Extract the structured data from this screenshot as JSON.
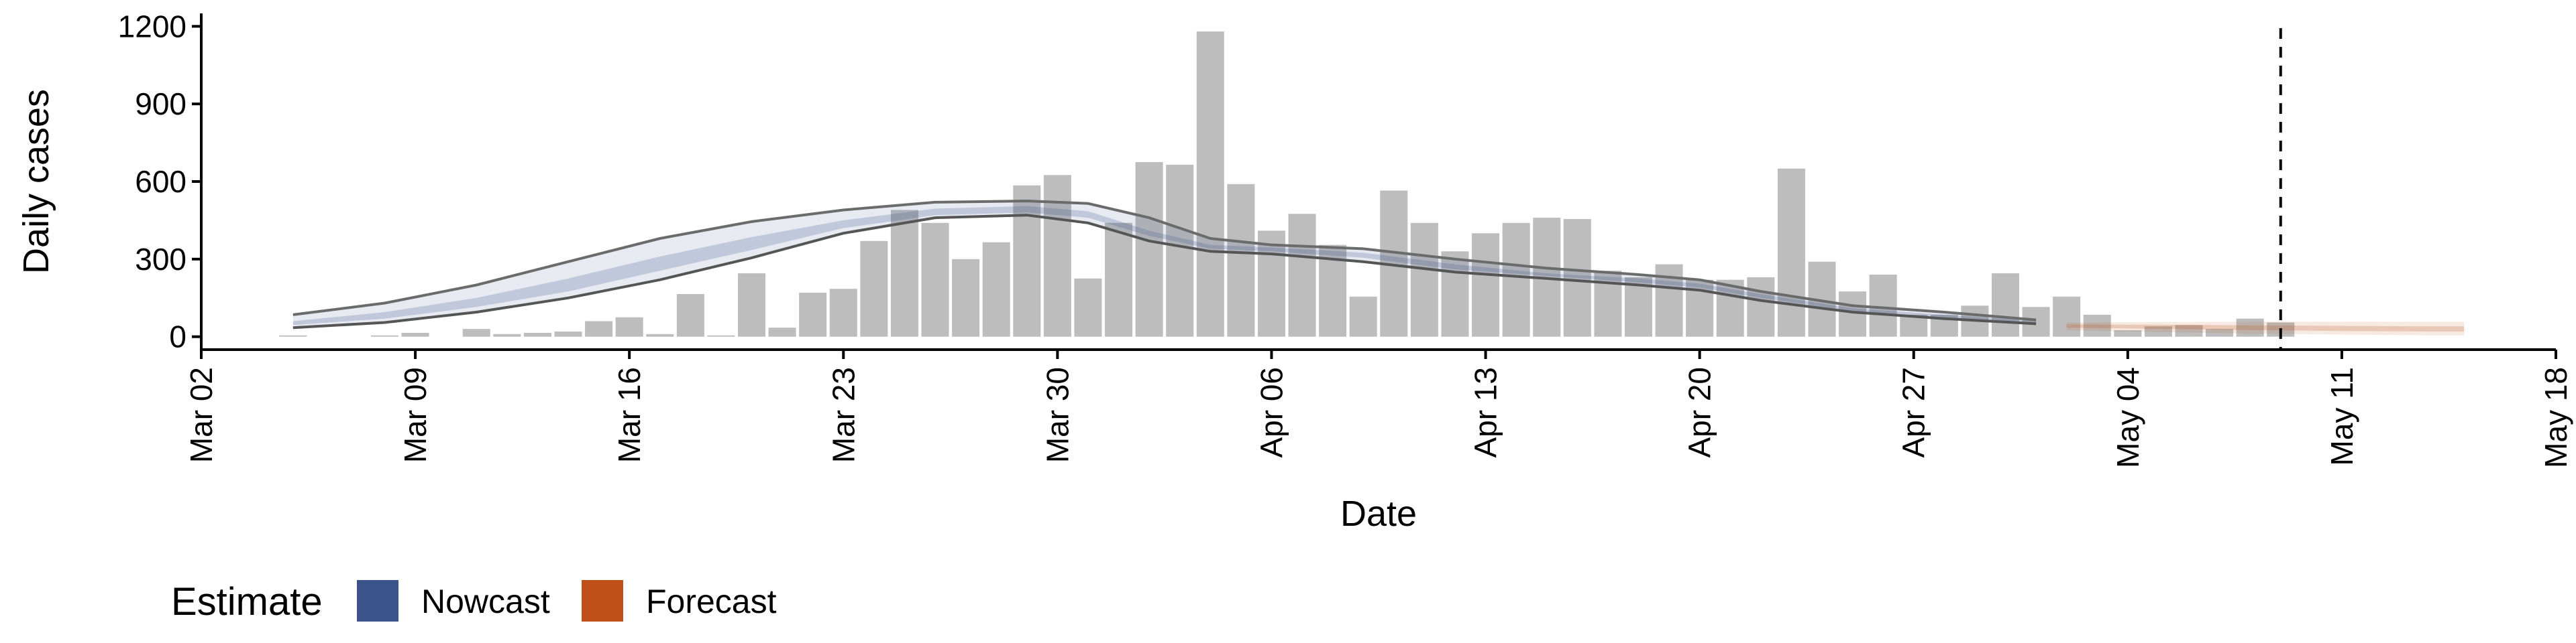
{
  "chart_data": {
    "type": "bar",
    "xlabel": "Date",
    "ylabel": "Daily cases",
    "x_range": [
      "2020-03-02",
      "2020-05-18"
    ],
    "ylim": [
      -50,
      1250
    ],
    "x_ticks": [
      "Mar 02",
      "Mar 09",
      "Mar 16",
      "Mar 23",
      "Mar 30",
      "Apr 06",
      "Apr 13",
      "Apr 20",
      "Apr 27",
      "May 04",
      "May 11",
      "May 18"
    ],
    "x_tick_dates": [
      "2020-03-02",
      "2020-03-09",
      "2020-03-16",
      "2020-03-23",
      "2020-03-30",
      "2020-04-06",
      "2020-04-13",
      "2020-04-20",
      "2020-04-27",
      "2020-05-04",
      "2020-05-11",
      "2020-05-18"
    ],
    "y_ticks": [
      0,
      300,
      600,
      900,
      1200
    ],
    "y_tick_labels": [
      "0",
      "300",
      "600",
      "900",
      "1200"
    ],
    "grid": false,
    "bar_color": "#bdbdbd",
    "vline_date": "2020-05-09",
    "bars": {
      "dates": [
        "2020-03-05",
        "2020-03-06",
        "2020-03-07",
        "2020-03-08",
        "2020-03-09",
        "2020-03-10",
        "2020-03-11",
        "2020-03-12",
        "2020-03-13",
        "2020-03-14",
        "2020-03-15",
        "2020-03-16",
        "2020-03-17",
        "2020-03-18",
        "2020-03-19",
        "2020-03-20",
        "2020-03-21",
        "2020-03-22",
        "2020-03-23",
        "2020-03-24",
        "2020-03-25",
        "2020-03-26",
        "2020-03-27",
        "2020-03-28",
        "2020-03-29",
        "2020-03-30",
        "2020-03-31",
        "2020-04-01",
        "2020-04-02",
        "2020-04-03",
        "2020-04-04",
        "2020-04-05",
        "2020-04-06",
        "2020-04-07",
        "2020-04-08",
        "2020-04-09",
        "2020-04-10",
        "2020-04-11",
        "2020-04-12",
        "2020-04-13",
        "2020-04-14",
        "2020-04-15",
        "2020-04-16",
        "2020-04-17",
        "2020-04-18",
        "2020-04-19",
        "2020-04-20",
        "2020-04-21",
        "2020-04-22",
        "2020-04-23",
        "2020-04-24",
        "2020-04-25",
        "2020-04-26",
        "2020-04-27",
        "2020-04-28",
        "2020-04-29",
        "2020-04-30",
        "2020-05-01",
        "2020-05-02",
        "2020-05-03",
        "2020-05-04",
        "2020-05-05",
        "2020-05-06",
        "2020-05-07",
        "2020-05-08",
        "2020-05-09"
      ],
      "values": [
        5,
        0,
        0,
        5,
        15,
        0,
        30,
        10,
        15,
        20,
        60,
        75,
        10,
        165,
        5,
        245,
        35,
        170,
        185,
        370,
        490,
        440,
        300,
        365,
        585,
        625,
        225,
        440,
        675,
        665,
        1180,
        590,
        410,
        475,
        355,
        155,
        565,
        440,
        330,
        400,
        440,
        460,
        455,
        255,
        230,
        280,
        220,
        220,
        230,
        650,
        290,
        175,
        240,
        85,
        85,
        120,
        245,
        115,
        155,
        85,
        25,
        40,
        45,
        30,
        70,
        55
      ]
    },
    "series": [
      {
        "name": "Nowcast",
        "color": "#3b528b",
        "dates": [
          "2020-03-05",
          "2020-03-08",
          "2020-03-11",
          "2020-03-14",
          "2020-03-17",
          "2020-03-20",
          "2020-03-23",
          "2020-03-26",
          "2020-03-29",
          "2020-03-31",
          "2020-04-02",
          "2020-04-04",
          "2020-04-06",
          "2020-04-09",
          "2020-04-12",
          "2020-04-15",
          "2020-04-18",
          "2020-04-20",
          "2020-04-22",
          "2020-04-25",
          "2020-04-28",
          "2020-05-01"
        ],
        "outer_upper": [
          85,
          130,
          200,
          290,
          380,
          445,
          490,
          520,
          525,
          515,
          460,
          380,
          355,
          340,
          300,
          265,
          240,
          220,
          175,
          120,
          95,
          65
        ],
        "outer_lower": [
          35,
          55,
          95,
          150,
          220,
          305,
          400,
          460,
          470,
          440,
          370,
          330,
          320,
          290,
          250,
          225,
          200,
          180,
          140,
          95,
          70,
          50
        ],
        "inner_upper": [
          60,
          95,
          150,
          225,
          310,
          385,
          450,
          495,
          505,
          485,
          410,
          355,
          345,
          325,
          280,
          245,
          225,
          205,
          165,
          110,
          85,
          60
        ],
        "inner_lower": [
          45,
          70,
          115,
          175,
          255,
          335,
          420,
          470,
          480,
          460,
          390,
          340,
          330,
          305,
          260,
          235,
          210,
          190,
          150,
          100,
          75,
          52
        ]
      },
      {
        "name": "Forecast",
        "color": "#c0501a",
        "dates": [
          "2020-05-02",
          "2020-05-05",
          "2020-05-08",
          "2020-05-11",
          "2020-05-14",
          "2020-05-15"
        ],
        "outer_upper": [
          55,
          57,
          58,
          58,
          58,
          58
        ],
        "outer_lower": [
          25,
          18,
          12,
          8,
          5,
          5
        ],
        "inner_upper": [
          48,
          46,
          44,
          42,
          40,
          40
        ],
        "inner_lower": [
          35,
          30,
          26,
          22,
          20,
          20
        ]
      }
    ],
    "legend": {
      "title": "Estimate",
      "position": "bottom-left",
      "items": [
        {
          "label": "Nowcast",
          "color": "#3b528b"
        },
        {
          "label": "Forecast",
          "color": "#c0501a"
        }
      ]
    }
  }
}
